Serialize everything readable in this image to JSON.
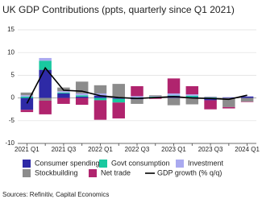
{
  "chart_data": {
    "type": "bar",
    "title": "UK GDP Contributions (ppts, quarterly since Q1 2021)",
    "source": "Sources: Refinitiv, Capital Economics",
    "categories": [
      "2021 Q1",
      null,
      "2021 Q3",
      null,
      "2022 Q1",
      null,
      "2022 Q3",
      null,
      "2023 Q1",
      null,
      "2023 Q3",
      null,
      "2024 Q1"
    ],
    "ylim": [
      -10,
      15
    ],
    "yticks": [
      -10,
      -5,
      0,
      5,
      10,
      15
    ],
    "grid": true,
    "series": [
      {
        "name": "Consumer spending",
        "color": "#2e2aa6",
        "values": [
          -2.6,
          6.2,
          1.0,
          0.3,
          0.5,
          -0.2,
          -0.3,
          0.2,
          0.5,
          0.2,
          -0.5,
          0.1,
          0.3
        ]
      },
      {
        "name": "Govt consumption",
        "color": "#19c9a0",
        "values": [
          0.3,
          2.0,
          0.2,
          0.3,
          -0.5,
          -0.8,
          0.1,
          0.1,
          0.1,
          0.3,
          0.1,
          0.0,
          0.0
        ]
      },
      {
        "name": "Investment",
        "color": "#aaaaf0",
        "values": [
          0.3,
          0.6,
          0.3,
          0.4,
          0.5,
          0.2,
          0.3,
          0.1,
          0.4,
          0.3,
          0.1,
          0.1,
          0.1
        ]
      },
      {
        "name": "Stockbuilding",
        "color": "#8c8c8c",
        "values": [
          0.6,
          -0.6,
          0.8,
          2.6,
          1.8,
          2.9,
          -1.0,
          0.2,
          -1.6,
          -1.4,
          0.1,
          -2.0,
          -0.8
        ]
      },
      {
        "name": "Net trade",
        "color": "#b0246e",
        "values": [
          -0.5,
          -3.0,
          -1.3,
          -1.5,
          -4.3,
          -3.5,
          2.2,
          -0.2,
          3.3,
          1.8,
          -2.0,
          -0.3,
          -0.1
        ]
      },
      {
        "name": "GDP growth (% q/q)",
        "type": "line",
        "color": "#000000",
        "values": [
          -1.2,
          6.6,
          1.7,
          1.5,
          0.5,
          0.1,
          -0.1,
          0.1,
          0.3,
          0.0,
          -0.1,
          -0.3,
          0.6
        ]
      }
    ]
  }
}
